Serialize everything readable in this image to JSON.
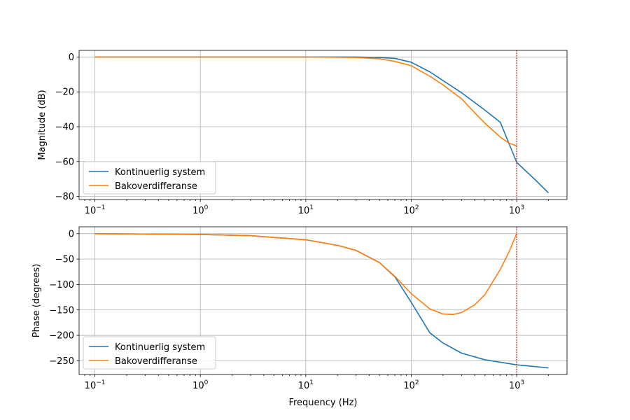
{
  "chart_data": [
    {
      "type": "line",
      "title": "",
      "xlabel": "",
      "ylabel": "Magnitude (dB)",
      "xscale": "log",
      "xlim": [
        0.0708,
        3000
      ],
      "ylim": [
        -81.8,
        3.8
      ],
      "xticks": [
        0.1,
        1,
        10,
        100,
        1000
      ],
      "xtick_labels": [
        {
          "base": "10",
          "exp": "−1"
        },
        {
          "base": "10",
          "exp": "0"
        },
        {
          "base": "10",
          "exp": "1"
        },
        {
          "base": "10",
          "exp": "2"
        },
        {
          "base": "10",
          "exp": "3"
        }
      ],
      "yticks": [
        0,
        -20,
        -40,
        -60,
        -80
      ],
      "ytick_labels": [
        "0",
        "−20",
        "−40",
        "−60",
        "−80"
      ],
      "grid": true,
      "legend_position": "lower-left",
      "vline": {
        "x": 1000,
        "color": "#d62728",
        "style": "dotted"
      },
      "series": [
        {
          "name": "Kontinuerlig system",
          "color": "#1f77b4",
          "x": [
            0.1,
            1,
            10,
            30,
            50,
            70,
            100,
            150,
            200,
            300,
            500,
            700,
            1000,
            1500,
            2000
          ],
          "y": [
            0,
            0,
            0,
            0,
            -0.3,
            -0.8,
            -3,
            -8.5,
            -13.5,
            -20.5,
            -30.5,
            -37.5,
            -60.5,
            -70.5,
            -78
          ]
        },
        {
          "name": "Bakoverdifferanse",
          "color": "#ff7f0e",
          "x": [
            0.1,
            1,
            10,
            30,
            50,
            70,
            100,
            150,
            200,
            300,
            400,
            500,
            700,
            850,
            1000
          ],
          "y": [
            0,
            0,
            0,
            -0.3,
            -1,
            -2.5,
            -5,
            -11,
            -16,
            -24,
            -32,
            -38,
            -46,
            -49.5,
            -51
          ]
        }
      ]
    },
    {
      "type": "line",
      "title": "",
      "xlabel": "Frequency (Hz)",
      "ylabel": "Phase (degrees)",
      "xscale": "log",
      "xlim": [
        0.0708,
        3000
      ],
      "ylim": [
        -277,
        13.5
      ],
      "xticks": [
        0.1,
        1,
        10,
        100,
        1000
      ],
      "xtick_labels": [
        {
          "base": "10",
          "exp": "−1"
        },
        {
          "base": "10",
          "exp": "0"
        },
        {
          "base": "10",
          "exp": "1"
        },
        {
          "base": "10",
          "exp": "2"
        },
        {
          "base": "10",
          "exp": "3"
        }
      ],
      "yticks": [
        0,
        -50,
        -100,
        -150,
        -200,
        -250
      ],
      "ytick_labels": [
        "0",
        "−50",
        "−100",
        "−150",
        "−200",
        "−250"
      ],
      "grid": true,
      "legend_position": "lower-left",
      "vline": {
        "x": 1000,
        "color": "#d62728",
        "style": "dotted"
      },
      "series": [
        {
          "name": "Kontinuerlig system",
          "color": "#1f77b4",
          "x": [
            0.1,
            1,
            3,
            10,
            20,
            30,
            50,
            70,
            100,
            150,
            200,
            300,
            500,
            1000,
            2000
          ],
          "y": [
            0,
            -1.5,
            -4,
            -12,
            -23,
            -33,
            -57,
            -85,
            -135,
            -195,
            -215,
            -235,
            -248,
            -258,
            -264
          ]
        },
        {
          "name": "Bakoverdifferanse",
          "color": "#ff7f0e",
          "x": [
            0.1,
            1,
            3,
            10,
            20,
            30,
            50,
            70,
            100,
            150,
            200,
            250,
            300,
            400,
            500,
            700,
            850,
            1000
          ],
          "y": [
            0,
            -1.5,
            -4,
            -12,
            -23,
            -33,
            -57,
            -84,
            -118,
            -148,
            -158,
            -159,
            -155,
            -140,
            -120,
            -70,
            -35,
            0
          ]
        }
      ]
    }
  ]
}
